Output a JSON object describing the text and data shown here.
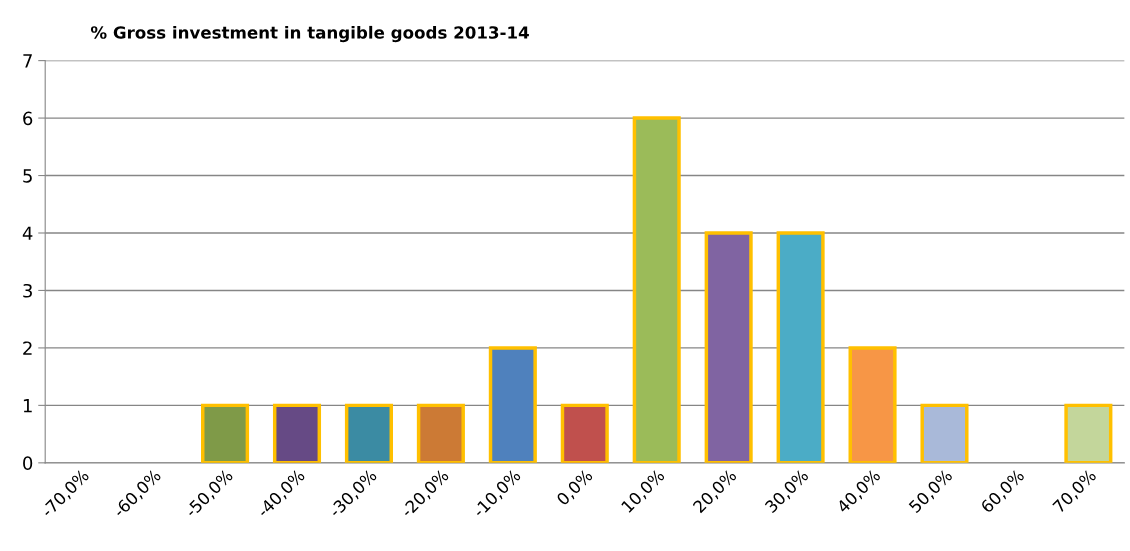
{
  "chart_data": {
    "type": "bar",
    "title": "% Gross investment in tangible goods 2013-14",
    "categories": [
      "-70,0%",
      "-60,0%",
      "-50,0%",
      "-40,0%",
      "-30,0%",
      "-20,0%",
      "-10,0%",
      "0,0%",
      "10,0%",
      "20,0%",
      "30,0%",
      "40,0%",
      "50,0%",
      "60,0%",
      "70,0%"
    ],
    "values": [
      0,
      0,
      1,
      1,
      1,
      1,
      2,
      1,
      6,
      4,
      4,
      2,
      1,
      0,
      1
    ],
    "colors": [
      null,
      null,
      "#7f9a48",
      "#664a85",
      "#3b8ba3",
      "#cc7a35",
      "#4f81bd",
      "#c0504d",
      "#9bbb59",
      "#8064a2",
      "#4bacc6",
      "#f79646",
      "#a9b9d9",
      null,
      "#c3d69b"
    ],
    "ylim": [
      0,
      7
    ],
    "yticks": [
      0,
      1,
      2,
      3,
      4,
      5,
      6,
      7
    ],
    "grid": "y",
    "legend": false
  }
}
